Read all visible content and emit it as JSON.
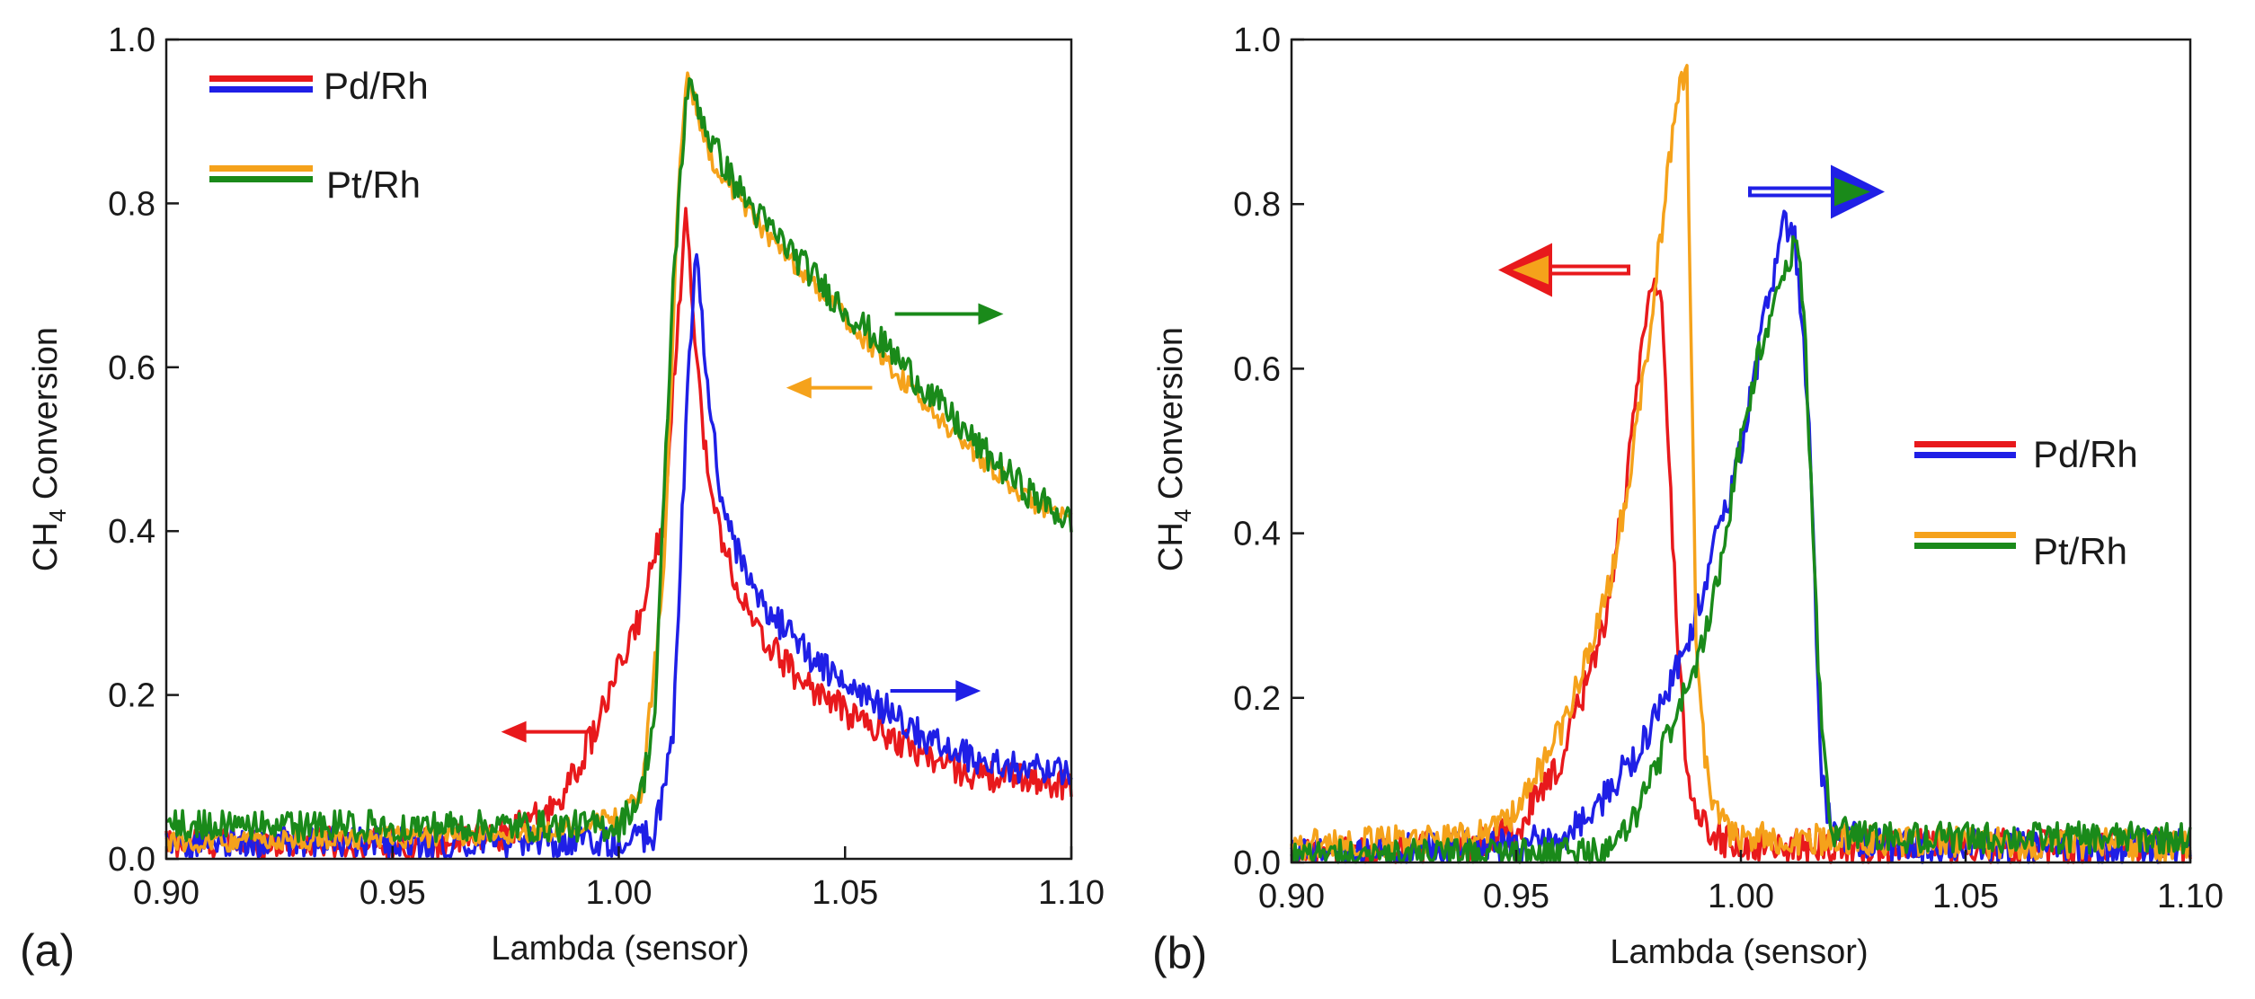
{
  "colors": {
    "pd_lean": "#e8191c",
    "pd_rich": "#1f1fe6",
    "pt_lean": "#f5a21b",
    "pt_rich": "#1a8a1a"
  },
  "chart_data": [
    {
      "panel_label": "(a)",
      "type": "line",
      "xlabel": "Lambda (sensor)",
      "ylabel_main": "CH",
      "ylabel_sub": "4",
      "ylabel_rest": " Conversion",
      "xlim": [
        0.9,
        1.1
      ],
      "ylim": [
        0.0,
        1.0
      ],
      "xticks": [
        "0.90",
        "0.95",
        "1.00",
        "1.05",
        "1.10"
      ],
      "yticks": [
        "0.0",
        "0.2",
        "0.4",
        "0.6",
        "0.8",
        "1.0"
      ],
      "legend": [
        {
          "label": "Pd/Rh",
          "colors": [
            "pd_lean",
            "pd_rich"
          ]
        },
        {
          "label": "Pt/Rh",
          "colors": [
            "pt_lean",
            "pt_rich"
          ]
        }
      ],
      "series": [
        {
          "name": "Pd/Rh lean sweep",
          "color": "pd_lean",
          "noise": 0.012,
          "x": [
            0.9,
            0.96,
            0.975,
            0.985,
            0.99,
            0.995,
            1.0,
            1.005,
            1.01,
            1.013,
            1.015,
            1.017,
            1.02,
            1.025,
            1.03,
            1.04,
            1.05,
            1.06,
            1.07,
            1.08,
            1.09,
            1.1
          ],
          "y": [
            0.02,
            0.02,
            0.03,
            0.06,
            0.1,
            0.16,
            0.23,
            0.3,
            0.42,
            0.65,
            0.8,
            0.62,
            0.45,
            0.35,
            0.28,
            0.22,
            0.18,
            0.15,
            0.12,
            0.1,
            0.1,
            0.09
          ]
        },
        {
          "name": "Pd/Rh rich sweep",
          "color": "pd_rich",
          "noise": 0.012,
          "x": [
            0.9,
            1.0,
            1.008,
            1.012,
            1.015,
            1.017,
            1.019,
            1.022,
            1.026,
            1.03,
            1.04,
            1.05,
            1.06,
            1.07,
            1.08,
            1.09,
            1.1
          ],
          "y": [
            0.02,
            0.02,
            0.03,
            0.15,
            0.55,
            0.74,
            0.62,
            0.46,
            0.38,
            0.32,
            0.26,
            0.21,
            0.18,
            0.14,
            0.12,
            0.11,
            0.11
          ]
        },
        {
          "name": "Pt/Rh lean sweep",
          "color": "pt_lean",
          "noise": 0.008,
          "x": [
            0.9,
            0.98,
            0.99,
            1.0,
            1.005,
            1.01,
            1.013,
            1.015,
            1.017,
            1.02,
            1.025,
            1.03,
            1.04,
            1.05,
            1.06,
            1.07,
            1.08,
            1.09,
            1.1
          ],
          "y": [
            0.02,
            0.03,
            0.04,
            0.05,
            0.08,
            0.35,
            0.8,
            0.95,
            0.92,
            0.86,
            0.82,
            0.78,
            0.72,
            0.66,
            0.6,
            0.54,
            0.49,
            0.44,
            0.41
          ]
        },
        {
          "name": "Pt/Rh rich sweep",
          "color": "pt_rich",
          "noise": 0.012,
          "x": [
            0.9,
            0.98,
            0.99,
            1.0,
            1.005,
            1.008,
            1.012,
            1.015,
            1.017,
            1.02,
            1.025,
            1.03,
            1.04,
            1.05,
            1.06,
            1.07,
            1.08,
            1.09,
            1.1
          ],
          "y": [
            0.04,
            0.04,
            0.04,
            0.04,
            0.08,
            0.18,
            0.7,
            0.94,
            0.93,
            0.88,
            0.83,
            0.79,
            0.73,
            0.67,
            0.62,
            0.56,
            0.5,
            0.45,
            0.41
          ]
        }
      ],
      "arrows": [
        {
          "color": "pd_lean",
          "direction": "left",
          "style": "thin",
          "x_from": 0.993,
          "x_to": 0.974,
          "y": 0.155
        },
        {
          "color": "pd_rich",
          "direction": "right",
          "style": "thin",
          "x_from": 1.06,
          "x_to": 1.08,
          "y": 0.205
        },
        {
          "color": "pt_lean",
          "direction": "left",
          "style": "thin",
          "x_from": 1.056,
          "x_to": 1.037,
          "y": 0.575
        },
        {
          "color": "pt_rich",
          "direction": "right",
          "style": "thin",
          "x_from": 1.061,
          "x_to": 1.085,
          "y": 0.665
        }
      ]
    },
    {
      "panel_label": "(b)",
      "type": "line",
      "xlabel": "Lambda (sensor)",
      "ylabel_main": "CH",
      "ylabel_sub": "4",
      "ylabel_rest": " Conversion",
      "xlim": [
        0.9,
        1.1
      ],
      "ylim": [
        0.0,
        1.0
      ],
      "xticks": [
        "0.90",
        "0.95",
        "1.00",
        "1.05",
        "1.10"
      ],
      "yticks": [
        "0.0",
        "0.2",
        "0.4",
        "0.6",
        "0.8",
        "1.0"
      ],
      "legend": [
        {
          "label": "Pd/Rh",
          "colors": [
            "pd_lean",
            "pd_rich"
          ]
        },
        {
          "label": "Pt/Rh",
          "colors": [
            "pt_lean",
            "pt_rich"
          ]
        }
      ],
      "series": [
        {
          "name": "Pd/Rh lean sweep",
          "color": "pd_lean",
          "noise": 0.013,
          "x": [
            0.9,
            0.94,
            0.95,
            0.96,
            0.97,
            0.975,
            0.978,
            0.98,
            0.982,
            0.984,
            0.986,
            0.988,
            0.99,
            0.995,
            1.0,
            1.1
          ],
          "y": [
            0.01,
            0.02,
            0.04,
            0.12,
            0.3,
            0.48,
            0.62,
            0.7,
            0.7,
            0.5,
            0.25,
            0.12,
            0.06,
            0.03,
            0.02,
            0.02
          ]
        },
        {
          "name": "Pd/Rh rich sweep",
          "color": "pd_rich",
          "noise": 0.013,
          "x": [
            0.9,
            0.95,
            0.96,
            0.97,
            0.98,
            0.99,
            1.0,
            1.005,
            1.008,
            1.01,
            1.012,
            1.015,
            1.017,
            1.018,
            1.02,
            1.03,
            1.1
          ],
          "y": [
            0.01,
            0.02,
            0.03,
            0.08,
            0.16,
            0.3,
            0.5,
            0.65,
            0.74,
            0.78,
            0.76,
            0.55,
            0.25,
            0.1,
            0.04,
            0.02,
            0.02
          ]
        },
        {
          "name": "Pt/Rh lean sweep",
          "color": "pt_lean",
          "noise": 0.012,
          "x": [
            0.9,
            0.94,
            0.95,
            0.96,
            0.97,
            0.975,
            0.98,
            0.983,
            0.985,
            0.987,
            0.988,
            0.989,
            0.99,
            0.992,
            0.995,
            1.0,
            1.1
          ],
          "y": [
            0.02,
            0.03,
            0.06,
            0.16,
            0.32,
            0.46,
            0.66,
            0.8,
            0.9,
            0.96,
            0.95,
            0.6,
            0.28,
            0.12,
            0.05,
            0.03,
            0.02
          ]
        },
        {
          "name": "Pt/Rh rich sweep",
          "color": "pt_rich",
          "noise": 0.012,
          "x": [
            0.9,
            0.97,
            0.975,
            0.98,
            0.99,
            0.995,
            1.0,
            1.005,
            1.008,
            1.01,
            1.012,
            1.014,
            1.016,
            1.018,
            1.02,
            1.03,
            1.1
          ],
          "y": [
            0.01,
            0.01,
            0.04,
            0.1,
            0.24,
            0.34,
            0.52,
            0.64,
            0.68,
            0.72,
            0.76,
            0.68,
            0.4,
            0.15,
            0.04,
            0.03,
            0.03
          ]
        }
      ],
      "arrows": [
        {
          "color": "pd_lean",
          "direction": "left",
          "style": "double",
          "x_from": 0.975,
          "x_to": 0.946,
          "y": 0.72
        },
        {
          "color": "pd_rich",
          "direction": "right",
          "style": "double",
          "x_from": 1.002,
          "x_to": 1.032,
          "y": 0.815
        }
      ]
    }
  ]
}
